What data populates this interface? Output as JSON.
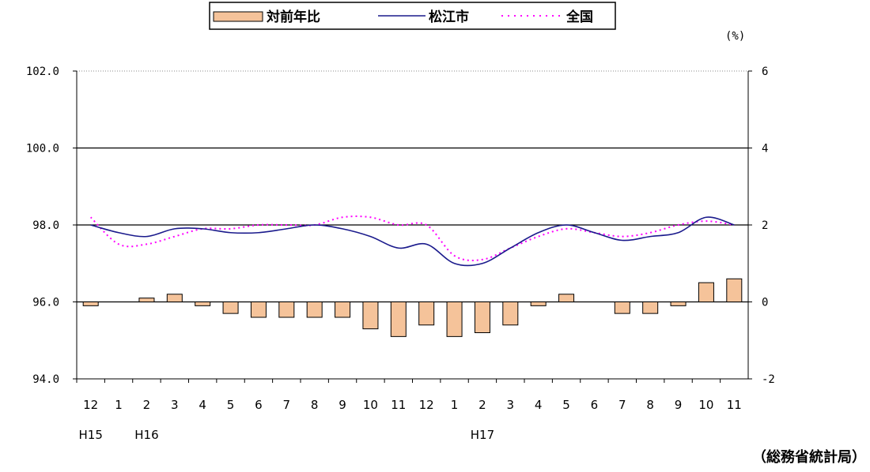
{
  "chart_data": {
    "type": "bar+line",
    "title": "",
    "source": "（総務省統計局）",
    "unit_label": "(%)",
    "left_axis": {
      "ylim": [
        94,
        102
      ],
      "ticks": [
        "94.0",
        "96.0",
        "98.0",
        "100.0",
        "102.0"
      ]
    },
    "right_axis": {
      "ylim": [
        -2,
        6
      ],
      "ticks": [
        "-2",
        "0",
        "2",
        "4",
        "6"
      ]
    },
    "grid": "horizontal at 96, 98, 100",
    "legend_position": "top",
    "categories": [
      "12",
      "1",
      "2",
      "3",
      "4",
      "5",
      "6",
      "7",
      "8",
      "9",
      "10",
      "11",
      "12",
      "1",
      "2",
      "3",
      "4",
      "5",
      "6",
      "7",
      "8",
      "9",
      "10",
      "11"
    ],
    "year_labels": [
      {
        "index": 0,
        "text": "H15"
      },
      {
        "index": 2,
        "text": "H16"
      },
      {
        "index": 14,
        "text": "H17"
      }
    ],
    "series": [
      {
        "name": "対前年比",
        "type": "bar",
        "axis": "right",
        "color": "#f5c39a",
        "values": [
          -0.1,
          0,
          0.1,
          0.2,
          -0.1,
          -0.3,
          -0.4,
          -0.4,
          -0.4,
          -0.4,
          -0.7,
          -0.9,
          -0.6,
          -0.9,
          -0.8,
          -0.6,
          -0.1,
          0.2,
          0,
          -0.3,
          -0.3,
          -0.1,
          0.5,
          0.6
        ]
      },
      {
        "name": "松江市",
        "type": "line",
        "axis": "left",
        "color": "#1a1a8c",
        "values": [
          98.0,
          97.8,
          97.7,
          97.9,
          97.9,
          97.8,
          97.8,
          97.9,
          98.0,
          97.9,
          97.7,
          97.4,
          97.5,
          97.0,
          97.0,
          97.4,
          97.8,
          98.0,
          97.8,
          97.6,
          97.7,
          97.8,
          98.2,
          98.0
        ]
      },
      {
        "name": "全国",
        "type": "line",
        "axis": "left",
        "color": "#ff00ff",
        "style": "dotted",
        "values": [
          98.2,
          97.5,
          97.5,
          97.7,
          97.9,
          97.9,
          98.0,
          98.0,
          98.0,
          98.2,
          98.2,
          98.0,
          98.0,
          97.2,
          97.1,
          97.4,
          97.7,
          97.9,
          97.8,
          97.7,
          97.8,
          98.0,
          98.1,
          98.0
        ]
      }
    ]
  }
}
